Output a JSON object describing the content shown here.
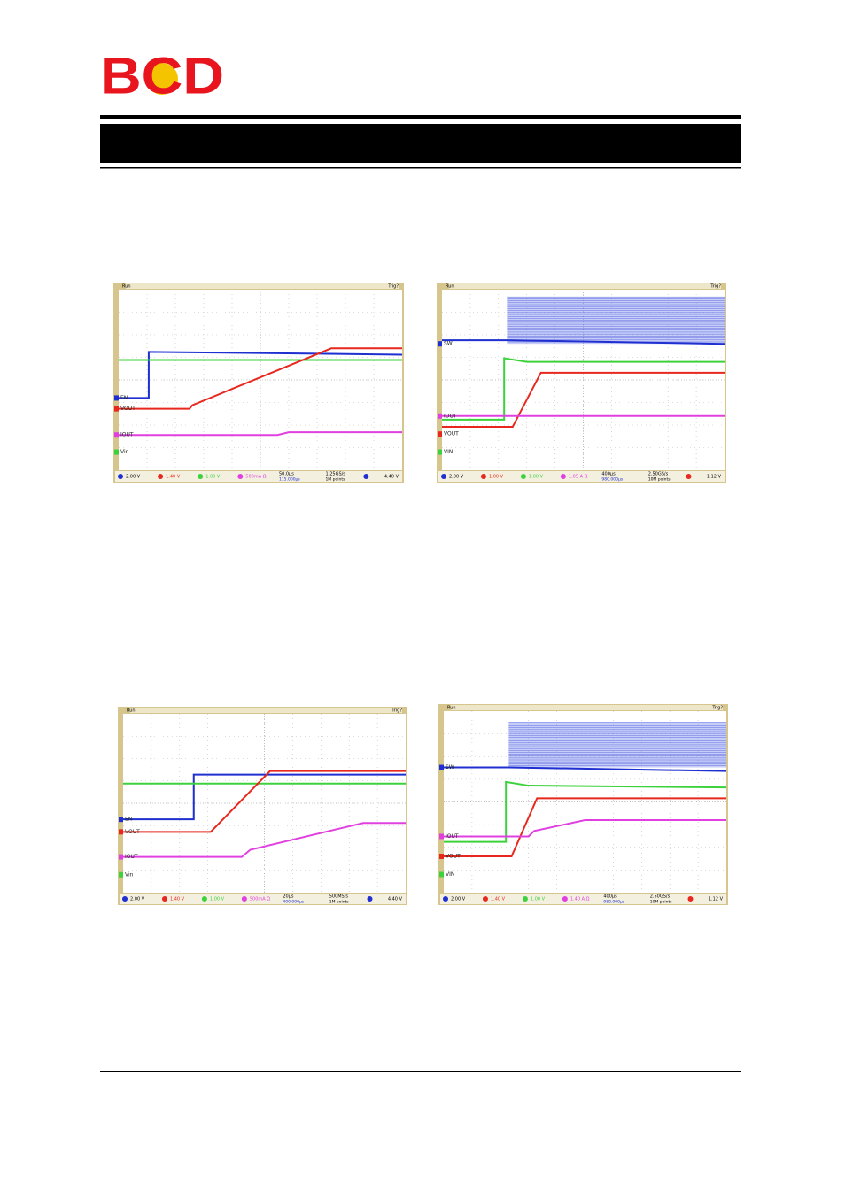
{
  "header": {
    "logo": "BCD"
  },
  "scopes": [
    {
      "status": "Run",
      "trigger_state": "Trig?",
      "channels": [
        "EN",
        "VOUT",
        "IOUT",
        "Vin"
      ],
      "settings": [
        "2.00 V",
        "1.40 V",
        "1.00 V",
        "500mA Ω"
      ],
      "timebase": "50.0µs",
      "delay": "115.000µs",
      "rate": "1.25GS/s",
      "points": "1M points",
      "trigger": "4.40 V"
    },
    {
      "status": "Run",
      "trigger_state": "Trig?",
      "channels": [
        "SW",
        "IOUT",
        "VOUT",
        "VIN"
      ],
      "settings": [
        "2.00 V",
        "1.00 V",
        "1.00 V",
        "1.05 A Ω"
      ],
      "timebase": "400µs",
      "delay": "980.000µs",
      "rate": "2.50GS/s",
      "points": "10M points",
      "trigger": "1.12 V"
    },
    {
      "status": "Run",
      "trigger_state": "Trig?",
      "channels": [
        "EN",
        "VOUT",
        "IOUT",
        "Vin"
      ],
      "settings": [
        "2.00 V",
        "1.40 V",
        "1.00 V",
        "500mA Ω"
      ],
      "timebase": "20µs",
      "delay": "400.000µs",
      "rate": "500MS/s",
      "points": "1M points",
      "trigger": "4.40 V"
    },
    {
      "status": "Run",
      "trigger_state": "Trig?",
      "channels": [
        "SW",
        "IOUT",
        "VOUT",
        "VIN"
      ],
      "settings": [
        "2.00 V",
        "1.40 V",
        "1.00 V",
        "1.40 A Ω"
      ],
      "timebase": "400µs",
      "delay": "980.000µs",
      "rate": "2.50GS/s",
      "points": "10M points",
      "trigger": "1.12 V"
    }
  ]
}
